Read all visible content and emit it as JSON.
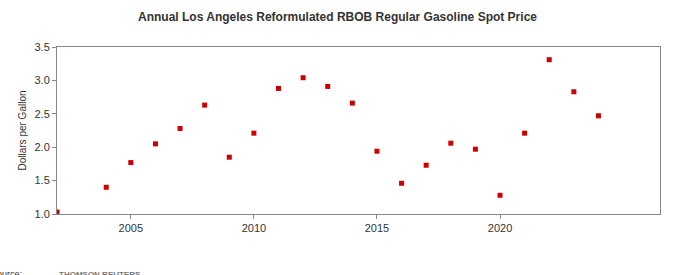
{
  "chart_data": {
    "type": "scatter",
    "title": "Annual Los Angeles Reformulated RBOB Regular Gasoline Spot Price",
    "y_label": "Dollars per Gallon",
    "x": [
      2002,
      2004,
      2005,
      2006,
      2007,
      2008,
      2009,
      2010,
      2011,
      2012,
      2013,
      2014,
      2015,
      2016,
      2017,
      2018,
      2019,
      2020,
      2021,
      2022,
      2023,
      2024
    ],
    "values": [
      1.03,
      1.4,
      1.77,
      2.05,
      2.28,
      2.63,
      1.85,
      2.21,
      2.88,
      3.04,
      2.91,
      2.66,
      1.94,
      1.46,
      1.73,
      2.06,
      1.97,
      1.28,
      2.21,
      3.31,
      2.83,
      2.47
    ],
    "color": "#cc0000",
    "marker": "square",
    "xlim": [
      2002,
      2026.5
    ],
    "xticks": [
      2005,
      2010,
      2015,
      2020
    ],
    "ylim": [
      1.0,
      3.5
    ],
    "yticks": [
      {
        "value": 1.0,
        "label": "1.0"
      },
      1.5,
      {
        "value": 2.0,
        "label": "2.0"
      },
      2.5,
      {
        "value": 3.0,
        "label": "3.0"
      },
      3.5
    ],
    "grid": false,
    "annotations": [
      "Source:",
      "THOMSON REUTERS"
    ]
  }
}
